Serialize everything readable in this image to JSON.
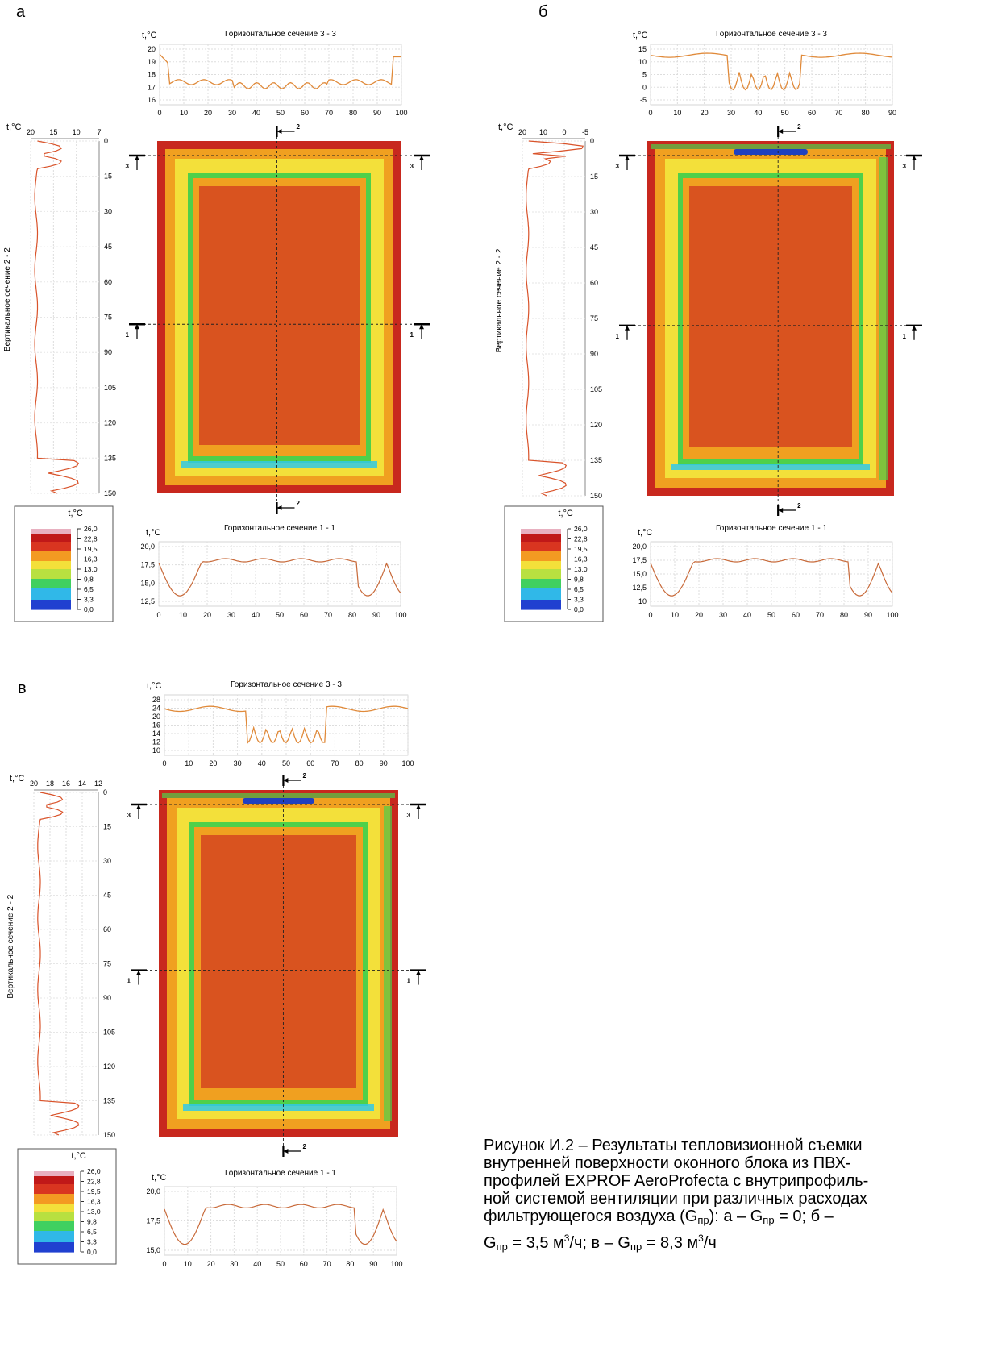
{
  "panels": [
    {
      "letter": "а",
      "unit": "t,°C",
      "h3_title": "Горизонтальное сечение 3 - 3",
      "h1_title": "Горизонтальное сечение 1 - 1",
      "v_title": "Вертикальное сечение 2 - 2",
      "h3_axis": {
        "x_ticks": [
          "0",
          "10",
          "20",
          "30",
          "40",
          "50",
          "60",
          "70",
          "80",
          "90",
          "100"
        ],
        "y_ticks": [
          "20",
          "19",
          "18",
          "17",
          "16"
        ]
      },
      "h1_axis": {
        "x_ticks": [
          "0",
          "10",
          "20",
          "30",
          "40",
          "50",
          "60",
          "70",
          "80",
          "90",
          "100"
        ],
        "y_ticks": [
          "20,0",
          "17,5",
          "15,0",
          "12,5"
        ]
      },
      "v_axis": {
        "t_ticks": [
          "20",
          "15",
          "10",
          "7"
        ],
        "pos_ticks": [
          "0",
          "15",
          "30",
          "45",
          "60",
          "75",
          "90",
          "105",
          "120",
          "135",
          "150"
        ]
      },
      "legend_values": [
        "26,0",
        "22,8",
        "19,5",
        "16,3",
        "13,0",
        "9,8",
        "6,5",
        "3,3",
        "0,0"
      ],
      "section_labels": {
        "s1": "1",
        "s2": "2",
        "s3": "3"
      }
    },
    {
      "letter": "б",
      "unit": "t,°C",
      "h3_title": "Горизонтальное сечение 3 - 3",
      "h1_title": "Горизонтальное сечение 1 - 1",
      "v_title": "Вертикальное сечение 2 - 2",
      "h3_axis": {
        "x_ticks": [
          "0",
          "10",
          "20",
          "30",
          "40",
          "50",
          "60",
          "70",
          "80",
          "90"
        ],
        "y_ticks": [
          "15",
          "10",
          "5",
          "0",
          "-5"
        ]
      },
      "h1_axis": {
        "x_ticks": [
          "0",
          "10",
          "20",
          "30",
          "40",
          "50",
          "60",
          "70",
          "80",
          "90",
          "100"
        ],
        "y_ticks": [
          "20,0",
          "17,5",
          "15,0",
          "12,5",
          "10"
        ]
      },
      "v_axis": {
        "t_ticks": [
          "20",
          "10",
          "0",
          "-5"
        ],
        "pos_ticks": [
          "0",
          "15",
          "30",
          "45",
          "60",
          "75",
          "90",
          "105",
          "120",
          "135",
          "150"
        ]
      },
      "legend_values": [
        "26,0",
        "22,8",
        "19,5",
        "16,3",
        "13,0",
        "9,8",
        "6,5",
        "3,3",
        "0,0"
      ],
      "section_labels": {
        "s1": "1",
        "s2": "2",
        "s3": "3"
      }
    },
    {
      "letter": "в",
      "unit": "t,°C",
      "h3_title": "Горизонтальное сечение 3 - 3",
      "h1_title": "Горизонтальное сечение 1 - 1",
      "v_title": "Вертикальное сечение 2 - 2",
      "h3_axis": {
        "x_ticks": [
          "0",
          "10",
          "20",
          "30",
          "40",
          "50",
          "60",
          "70",
          "80",
          "90",
          "100"
        ],
        "y_ticks": [
          "28",
          "24",
          "20",
          "16",
          "14",
          "12",
          "10"
        ]
      },
      "h1_axis": {
        "x_ticks": [
          "0",
          "10",
          "20",
          "30",
          "40",
          "50",
          "60",
          "70",
          "80",
          "90",
          "100"
        ],
        "y_ticks": [
          "20,0",
          "17,5",
          "15,0"
        ]
      },
      "v_axis": {
        "t_ticks": [
          "20",
          "18",
          "16",
          "14",
          "12"
        ],
        "pos_ticks": [
          "0",
          "15",
          "30",
          "45",
          "60",
          "75",
          "90",
          "105",
          "120",
          "135",
          "150"
        ]
      },
      "legend_values": [
        "26,0",
        "22,8",
        "19,5",
        "16,3",
        "13,0",
        "9,8",
        "6,5",
        "3,3",
        "0,0"
      ],
      "section_labels": {
        "s1": "1",
        "s2": "2",
        "s3": "3"
      }
    }
  ],
  "caption": {
    "line1": "Рисунок И.2 –  Результаты тепловизионной съемки",
    "line2": "внутренней поверхности оконного блока из ПВХ-",
    "line3": "профилей EXPROF AeroProfecta с внутрипрофиль-",
    "line4": "ной системой вентиляции при различных расходах",
    "line5a": "фильтрующегося воздуха (G",
    "line5b": "пр",
    "line5c": "): а –   G",
    "line5d": "пр",
    "line5e": " =   0; б –",
    "line6a": "G",
    "line6b": "пр",
    "line6c": " =  3,5 м",
    "line6d": "3",
    "line6e": "/ч; в – G",
    "line6f": "пр",
    "line6g": " =  8,3 м",
    "line6h": "3",
    "line6i": "/ч"
  },
  "colors": {
    "frame_hot": "#c8281e",
    "glass_core": "#d9531f",
    "glass_edge": "#f0a020",
    "warm_yellow": "#f3e03a",
    "cold_green": "#4fd04a",
    "cold_cyan": "#30c8e8",
    "cold_blue": "#2040c0"
  }
}
